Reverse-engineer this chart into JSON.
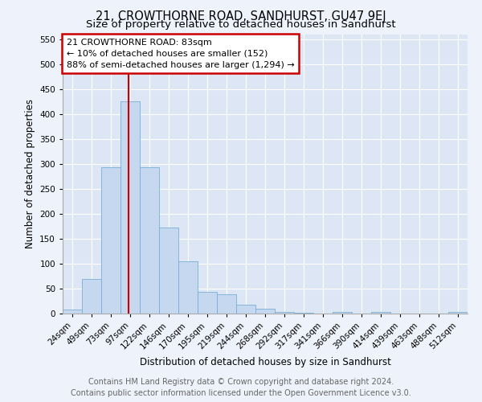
{
  "title": "21, CROWTHORNE ROAD, SANDHURST, GU47 9EJ",
  "subtitle": "Size of property relative to detached houses in Sandhurst",
  "xlabel": "Distribution of detached houses by size in Sandhurst",
  "ylabel": "Number of detached properties",
  "bar_values_full": [
    8,
    70,
    293,
    425,
    293,
    173,
    105,
    43,
    38,
    17,
    9,
    4,
    2,
    0,
    4,
    0,
    3,
    0,
    0,
    0,
    3
  ],
  "bin_edges": [
    24,
    49,
    73,
    97,
    122,
    146,
    170,
    195,
    219,
    244,
    268,
    292,
    317,
    341,
    366,
    390,
    414,
    439,
    463,
    488,
    512
  ],
  "bar_color": "#c5d8f0",
  "bar_edge_color": "#7aafd4",
  "vline_color": "#cc0000",
  "ylim": [
    0,
    560
  ],
  "yticks": [
    0,
    50,
    100,
    150,
    200,
    250,
    300,
    350,
    400,
    450,
    500,
    550
  ],
  "annotation_title": "21 CROWTHORNE ROAD: 83sqm",
  "annotation_line1": "← 10% of detached houses are smaller (152)",
  "annotation_line2": "88% of semi-detached houses are larger (1,294) →",
  "annotation_box_color": "#cc0000",
  "footer_line1": "Contains HM Land Registry data © Crown copyright and database right 2024.",
  "footer_line2": "Contains public sector information licensed under the Open Government Licence v3.0.",
  "bg_color": "#eef2fa",
  "plot_bg_color": "#dce6f5",
  "grid_color": "#ffffff",
  "title_fontsize": 10.5,
  "subtitle_fontsize": 9.5,
  "axis_label_fontsize": 8.5,
  "tick_fontsize": 7.5,
  "footer_fontsize": 7,
  "ann_fontsize": 8
}
